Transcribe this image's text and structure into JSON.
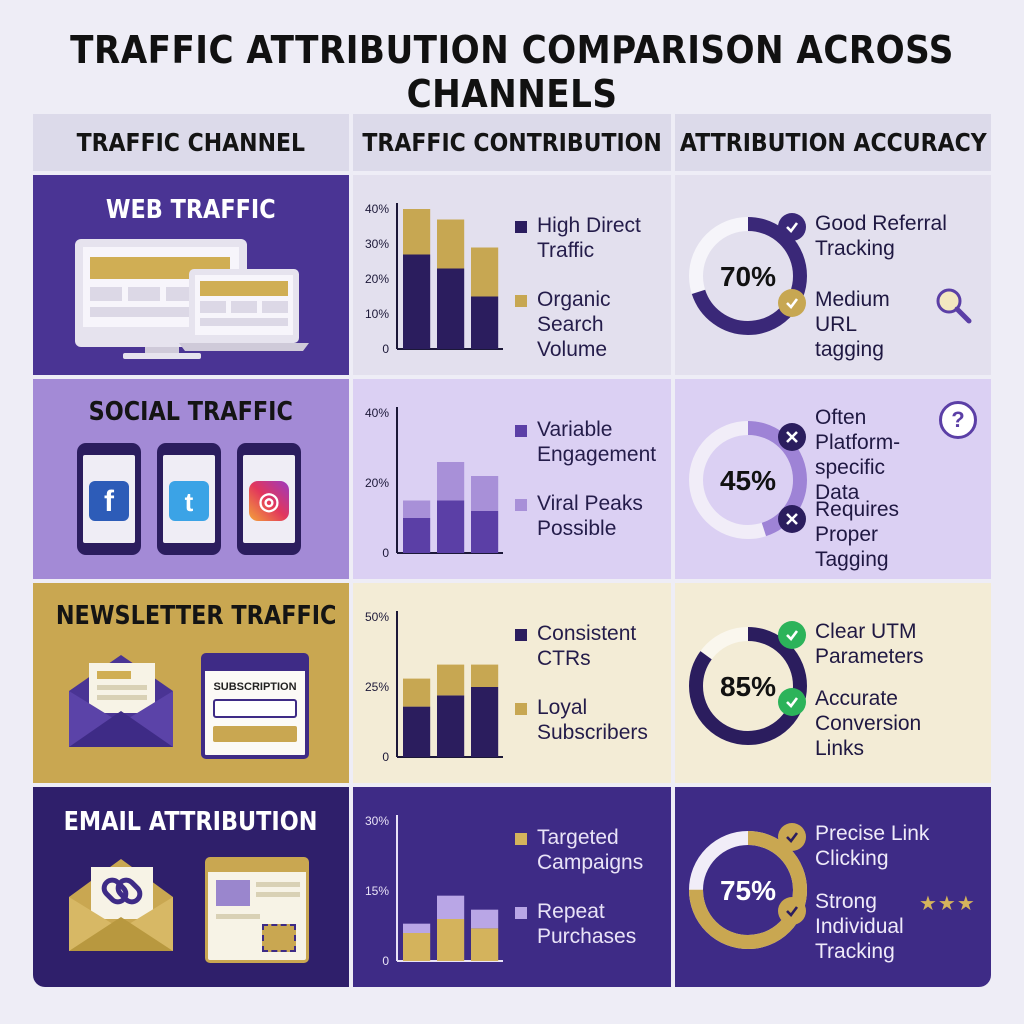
{
  "title": "TRAFFIC ATTRIBUTION COMPARISON ACROSS CHANNELS",
  "headers": [
    "TRAFFIC CHANNEL",
    "TRAFFIC CONTRIBUTION",
    "ATTRIBUTION ACCURACY"
  ],
  "colors": {
    "dark_purple": "#3f2a85",
    "mid_purple": "#9a86cd",
    "light_purple": "#d9ccf1",
    "gold": "#c7a752",
    "cream": "#f3ecd6",
    "pale_lavender": "#e7e3f3",
    "success_green": "#2cb35a"
  },
  "rows": [
    {
      "channel": "WEB TRAFFIC",
      "icon": "desktop-laptop-icon",
      "chart_legend": [
        "High Direct Traffic",
        "Organic Search Volume"
      ],
      "chart_ticks": [
        "40%",
        "30%",
        "20%",
        "10%",
        "0"
      ],
      "accuracy": "70%",
      "accuracy_items": [
        {
          "icon": "check-icon",
          "text": "Good Referral Tracking"
        },
        {
          "icon": "check-icon",
          "text": "Medium URL tagging"
        }
      ]
    },
    {
      "channel": "SOCIAL TRAFFIC",
      "icon": "phone-social-icons",
      "social_letters": [
        "f",
        "t",
        "◎"
      ],
      "chart_legend": [
        "Variable Engagement",
        "Viral Peaks Possible"
      ],
      "chart_ticks": [
        "40%",
        "20%",
        "0"
      ],
      "accuracy": "45%",
      "accuracy_items": [
        {
          "icon": "x-icon",
          "text": "Often Platform-specific Data"
        },
        {
          "icon": "x-icon",
          "text": "Requires Proper Tagging"
        }
      ],
      "question_mark": "?"
    },
    {
      "channel": "NEWSLETTER TRAFFIC",
      "icon": "envelope-subscription-icon",
      "subscription_label": "SUBSCRIPTION",
      "chart_legend": [
        "Consistent CTRs",
        "Loyal Subscribers"
      ],
      "chart_ticks": [
        "50%",
        "25%",
        "0"
      ],
      "accuracy": "85%",
      "accuracy_items": [
        {
          "icon": "green-check-icon",
          "text": "Clear UTM Parameters"
        },
        {
          "icon": "green-check-icon",
          "text": "Accurate Conversion Links"
        }
      ]
    },
    {
      "channel": "EMAIL ATTRIBUTION",
      "icon": "envelope-link-icon",
      "chart_legend": [
        "Targeted Campaigns",
        "Repeat Purchases"
      ],
      "chart_ticks": [
        "30%",
        "15%",
        "0"
      ],
      "accuracy": "75%",
      "accuracy_items": [
        {
          "icon": "check-icon",
          "text": "Precise Link Clicking"
        },
        {
          "icon": "check-icon",
          "text": "Strong Individual Tracking"
        }
      ],
      "stars": "★★★"
    }
  ],
  "chart_data": [
    {
      "type": "bar",
      "stacked": true,
      "ylim": [
        0,
        40
      ],
      "categories": [
        "",
        "",
        ""
      ],
      "series": [
        {
          "name": "High Direct Traffic",
          "values": [
            27,
            23,
            15
          ]
        },
        {
          "name": "Organic Search Volume",
          "values": [
            13,
            14,
            14
          ]
        }
      ]
    },
    {
      "type": "bar",
      "stacked": true,
      "ylim": [
        0,
        40
      ],
      "categories": [
        "",
        "",
        ""
      ],
      "series": [
        {
          "name": "Variable Engagement",
          "values": [
            10,
            15,
            12
          ]
        },
        {
          "name": "Viral Peaks Possible",
          "values": [
            5,
            11,
            10
          ]
        }
      ]
    },
    {
      "type": "bar",
      "stacked": true,
      "ylim": [
        0,
        50
      ],
      "categories": [
        "",
        "",
        ""
      ],
      "series": [
        {
          "name": "Consistent CTRs",
          "values": [
            18,
            22,
            25
          ]
        },
        {
          "name": "Loyal Subscribers",
          "values": [
            10,
            11,
            8
          ]
        }
      ]
    },
    {
      "type": "bar",
      "stacked": true,
      "ylim": [
        0,
        30
      ],
      "categories": [
        "",
        "",
        ""
      ],
      "series": [
        {
          "name": "Targeted Campaigns",
          "values": [
            6,
            9,
            7
          ]
        },
        {
          "name": "Repeat Purchases",
          "values": [
            2,
            5,
            4
          ]
        }
      ]
    }
  ],
  "donuts": [
    0.7,
    0.45,
    0.85,
    0.75
  ]
}
